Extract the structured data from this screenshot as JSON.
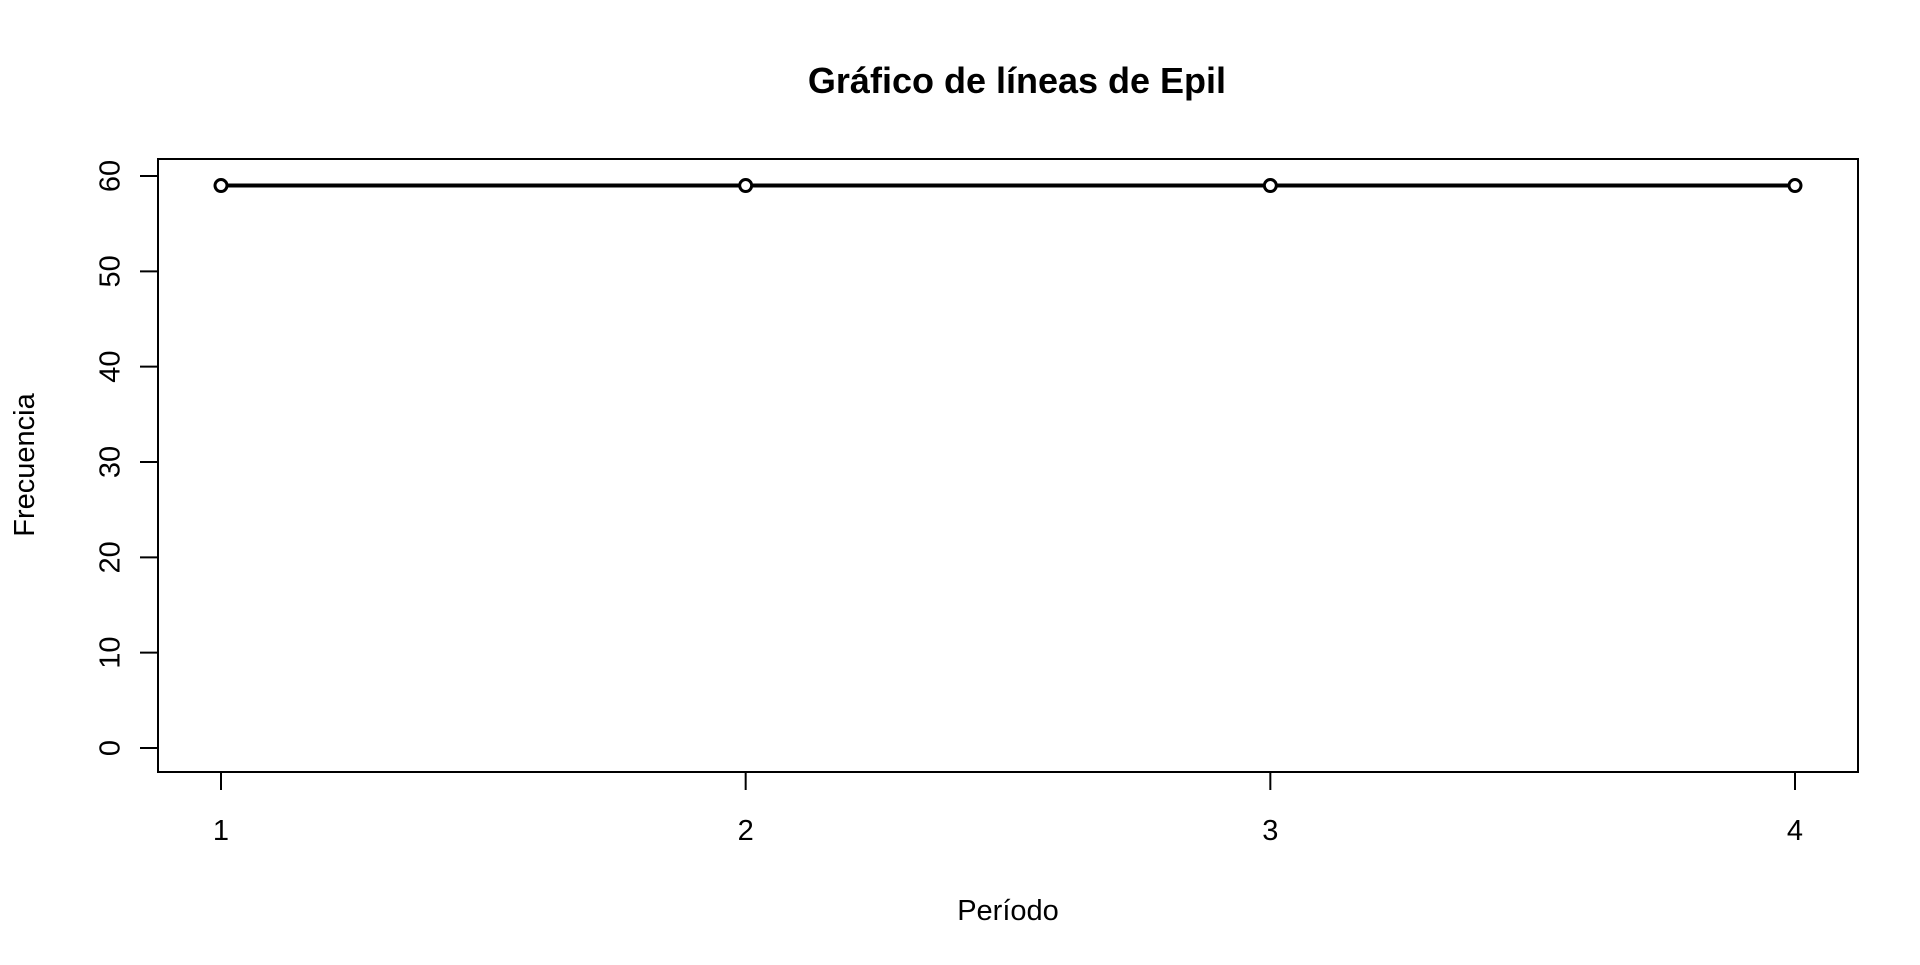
{
  "chart_data": {
    "type": "line",
    "title": "Gráfico de líneas de Epil",
    "xlabel": "Período",
    "ylabel": "Frecuencia",
    "x": [
      1,
      2,
      3,
      4
    ],
    "x_ticks": [
      "1",
      "2",
      "3",
      "4"
    ],
    "y_ticks": [
      "0",
      "10",
      "20",
      "30",
      "40",
      "50",
      "60"
    ],
    "series": [
      {
        "values": [
          59,
          59,
          59,
          59
        ]
      }
    ],
    "xlim": [
      1,
      4
    ],
    "ylim": [
      0,
      60
    ],
    "grid": false,
    "markers": "open-circle",
    "line_color": "#000000"
  }
}
